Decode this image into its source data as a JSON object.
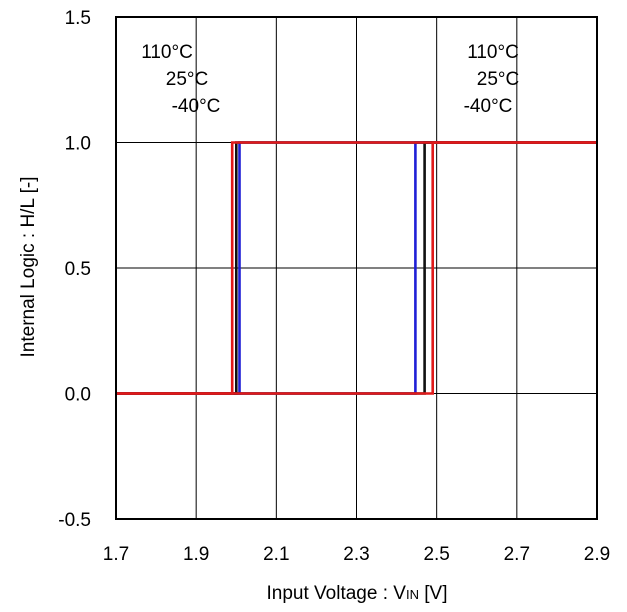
{
  "chart_data": {
    "type": "line",
    "title": "",
    "xlabel": "Input Voltage : V",
    "xlabel_sub": "IN",
    "xlabel_unit": " [V]",
    "ylabel": "Internal Logic : H/L [-]",
    "xlim": [
      1.7,
      2.9
    ],
    "ylim": [
      -0.5,
      1.5
    ],
    "x_ticks": [
      "1.7",
      "1.9",
      "2.1",
      "2.3",
      "2.5",
      "2.7",
      "2.9"
    ],
    "y_ticks": [
      "1.5",
      "1.0",
      "0.5",
      "0.0",
      "-0.5"
    ],
    "grid": true,
    "annotations_left": [
      "110°C",
      "25°C",
      "-40°C"
    ],
    "annotations_right": [
      "110°C",
      "25°C",
      "-40°C"
    ],
    "series": [
      {
        "color": "#1f1fd6",
        "x": [
          1.7,
          2.008,
          2.008,
          2.9
        ],
        "y": [
          0,
          0,
          1,
          1
        ]
      },
      {
        "color": "#1f1fd6",
        "x": [
          2.9,
          2.447,
          2.447,
          1.7
        ],
        "y": [
          1,
          1,
          0,
          0
        ]
      },
      {
        "color": "#111111",
        "x": [
          1.7,
          2.0,
          2.0,
          2.9
        ],
        "y": [
          0,
          0,
          1,
          1
        ]
      },
      {
        "color": "#111111",
        "x": [
          2.9,
          2.47,
          2.47,
          1.7
        ],
        "y": [
          1,
          1,
          0,
          0
        ]
      },
      {
        "color": "#e01a1a",
        "x": [
          1.7,
          1.99,
          1.99,
          2.9
        ],
        "y": [
          0,
          0,
          1,
          1
        ]
      },
      {
        "color": "#e01a1a",
        "x": [
          2.9,
          2.49,
          2.49,
          1.7
        ],
        "y": [
          1,
          1,
          0,
          0
        ]
      }
    ]
  }
}
